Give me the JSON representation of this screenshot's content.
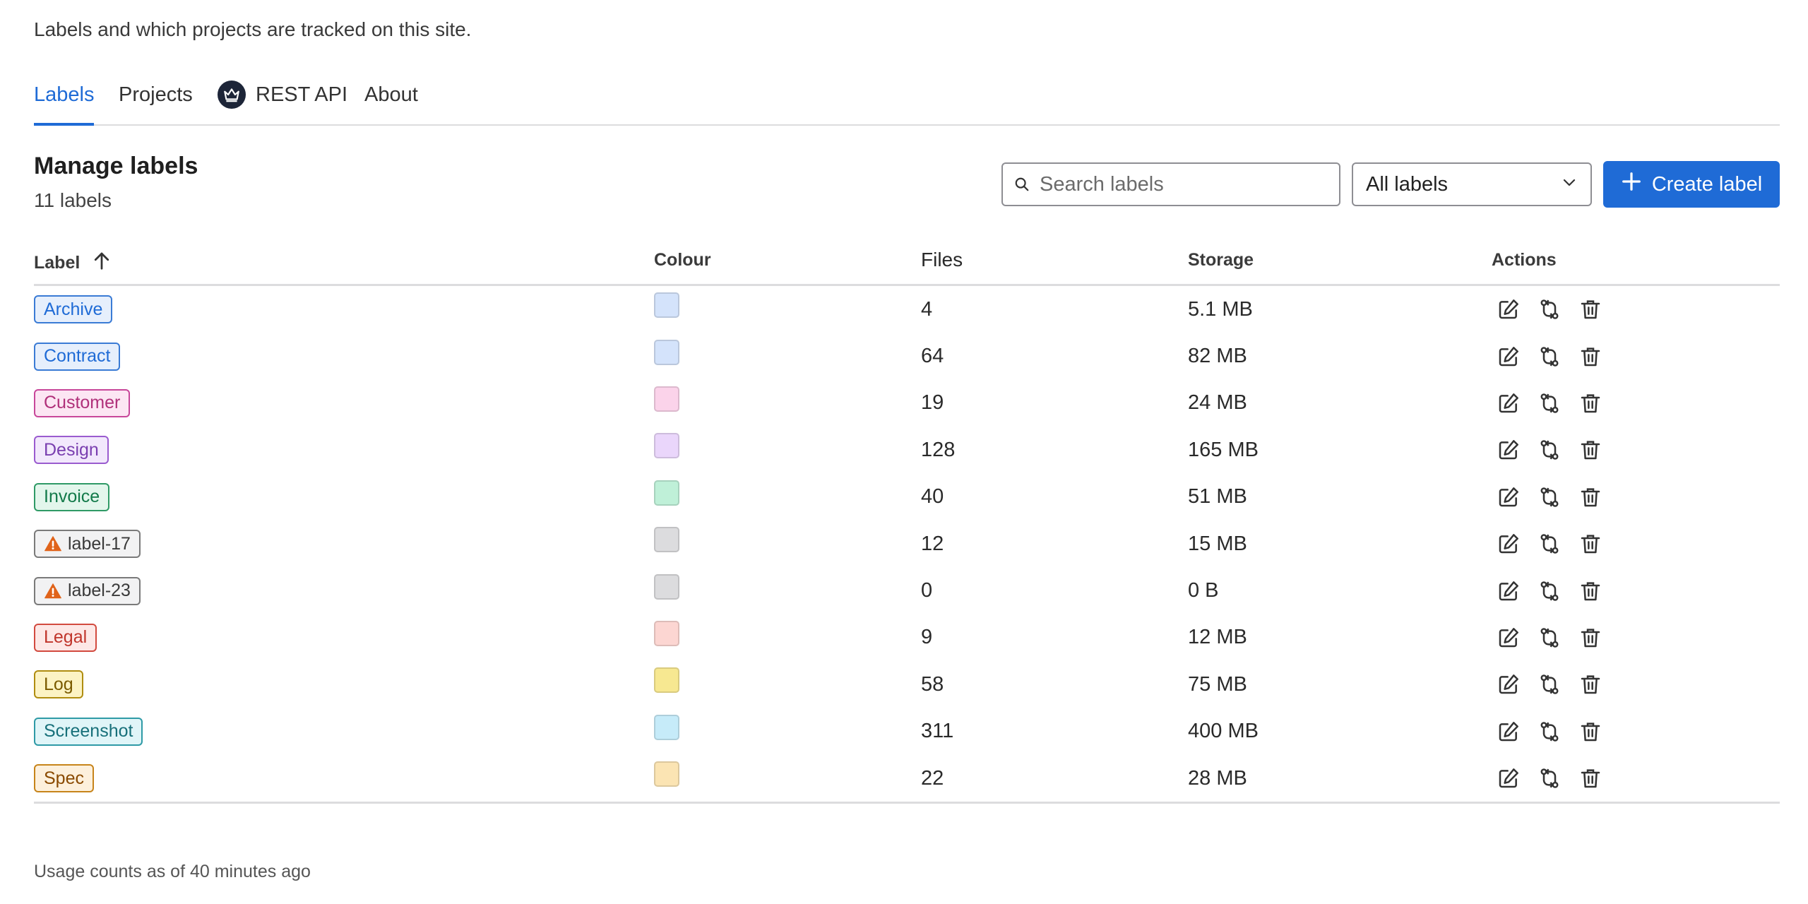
{
  "page": {
    "subtitle": "Labels and which projects are tracked on this site."
  },
  "tabs": [
    {
      "label": "Labels",
      "active": true
    },
    {
      "label": "Projects"
    },
    {
      "label": "REST API",
      "icon": "crown-icon"
    },
    {
      "label": "About"
    }
  ],
  "section": {
    "title": "Manage labels",
    "count": "11 labels"
  },
  "search": {
    "placeholder": "Search labels",
    "value": ""
  },
  "filter": {
    "selected": "All labels"
  },
  "create_button": {
    "label": "Create label"
  },
  "table": {
    "headers": {
      "label": "Label",
      "colour": "Colour",
      "files": "Files",
      "storage": "Storage",
      "actions": "Actions"
    },
    "rows": [
      {
        "label": "Archive",
        "files": "4",
        "storage": "5.1 MB",
        "text": "#1f6bd6",
        "border": "#3a7bd5",
        "bg": "#e6effc",
        "swatch": "#d4e3fb"
      },
      {
        "label": "Contract",
        "files": "64",
        "storage": "82 MB",
        "text": "#1f6bd6",
        "border": "#3a7bd5",
        "bg": "#e6effc",
        "swatch": "#d4e3fb"
      },
      {
        "label": "Customer",
        "files": "19",
        "storage": "24 MB",
        "text": "#b0307a",
        "border": "#c8479a",
        "bg": "#fce6f3",
        "swatch": "#fbd3ea"
      },
      {
        "label": "Design",
        "files": "128",
        "storage": "165 MB",
        "text": "#7a3fb0",
        "border": "#9a5bcf",
        "bg": "#f2e8fc",
        "swatch": "#ead6fb"
      },
      {
        "label": "Invoice",
        "files": "40",
        "storage": "51 MB",
        "text": "#137a4a",
        "border": "#2f9a66",
        "bg": "#e3f6ec",
        "swatch": "#bff0d8"
      },
      {
        "label": "label-17",
        "files": "12",
        "storage": "15 MB",
        "text": "#3a3a3a",
        "border": "#7a7a7a",
        "bg": "#f2f2f3",
        "swatch": "#dcdcde",
        "warning": true
      },
      {
        "label": "label-23",
        "files": "0",
        "storage": "0 B",
        "text": "#3a3a3a",
        "border": "#7a7a7a",
        "bg": "#f2f2f3",
        "swatch": "#dcdcde",
        "warning": true
      },
      {
        "label": "Legal",
        "files": "9",
        "storage": "12 MB",
        "text": "#c0352b",
        "border": "#d24a3f",
        "bg": "#fde8e6",
        "swatch": "#fcd6d2"
      },
      {
        "label": "Log",
        "files": "58",
        "storage": "75 MB",
        "text": "#7a5a00",
        "border": "#b08d10",
        "bg": "#fcf3c4",
        "swatch": "#f7e891"
      },
      {
        "label": "Screenshot",
        "files": "311",
        "storage": "400 MB",
        "text": "#17707a",
        "border": "#2e9aa6",
        "bg": "#e0f5f8",
        "swatch": "#c6ebf9"
      },
      {
        "label": "Spec",
        "files": "22",
        "storage": "28 MB",
        "text": "#8a4a00",
        "border": "#c7841a",
        "bg": "#fdf0dc",
        "swatch": "#fbe4b3"
      }
    ]
  },
  "footer": {
    "text": "Usage counts as of 40 minutes ago"
  },
  "colors": {
    "accent": "#1f6bd6",
    "warning": "#e0631a"
  }
}
